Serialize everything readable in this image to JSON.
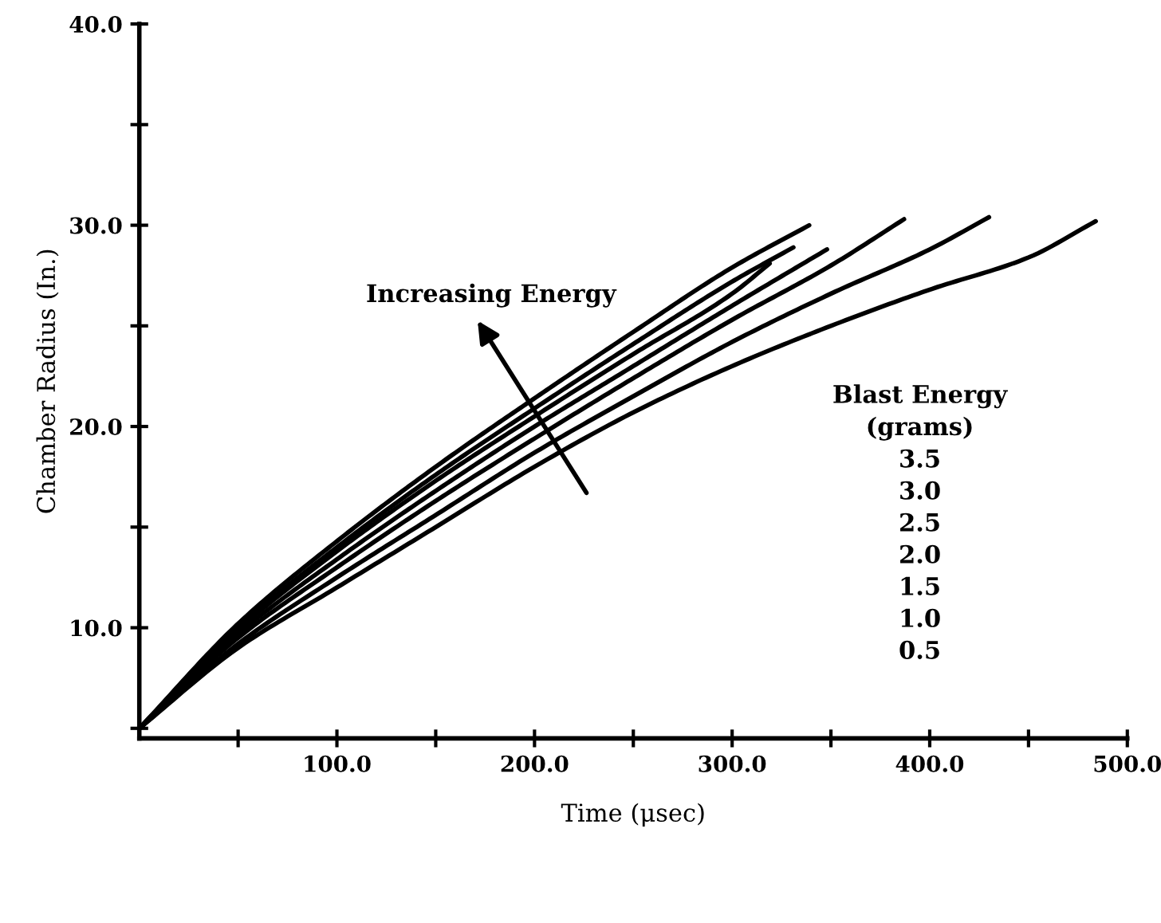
{
  "chart_data": {
    "type": "line",
    "xlabel": "Time (μsec)",
    "ylabel": "Chamber Radius (In.)",
    "grid": false,
    "marker": "none",
    "line_style": "solid",
    "xlim": [
      0,
      500
    ],
    "ylim": [
      4.5,
      40
    ],
    "xticks": [
      {
        "value": 50,
        "label": null
      },
      {
        "value": 100,
        "label": "100.0"
      },
      {
        "value": 150,
        "label": null
      },
      {
        "value": 200,
        "label": "200.0"
      },
      {
        "value": 250,
        "label": null
      },
      {
        "value": 300,
        "label": "300.0"
      },
      {
        "value": 350,
        "label": null
      },
      {
        "value": 400,
        "label": "400.0"
      },
      {
        "value": 450,
        "label": null
      },
      {
        "value": 500,
        "label": "500.0"
      }
    ],
    "yticks": [
      {
        "value": 5,
        "label": null
      },
      {
        "value": 10,
        "label": "10.0"
      },
      {
        "value": 15,
        "label": null
      },
      {
        "value": 20,
        "label": "20.0"
      },
      {
        "value": 25,
        "label": null
      },
      {
        "value": 30,
        "label": "30.0"
      },
      {
        "value": 35,
        "label": null
      },
      {
        "value": 40,
        "label": "40.0"
      }
    ],
    "annotations": [
      "Increasing Energy",
      "Blast Energy\n(grams)\n3.5\n3.0\n2.5\n2.0\n1.5\n1.0\n0.5"
    ],
    "series": [
      {
        "color": "#000000",
        "x": [
          0,
          50,
          100,
          150,
          200,
          250,
          300,
          339
        ],
        "values": [
          5,
          10.2,
          14.3,
          18.0,
          21.4,
          24.7,
          27.9,
          30.0
        ]
      },
      {
        "color": "#000000",
        "x": [
          0,
          50,
          100,
          150,
          200,
          250,
          300,
          331
        ],
        "values": [
          5,
          10.0,
          14.0,
          17.6,
          20.9,
          24.1,
          27.2,
          28.9
        ]
      },
      {
        "color": "#000000",
        "x": [
          0,
          50,
          100,
          150,
          200,
          250,
          300,
          319
        ],
        "values": [
          5,
          9.9,
          13.8,
          17.3,
          20.5,
          23.6,
          26.6,
          28.1
        ]
      },
      {
        "color": "#000000",
        "x": [
          0,
          50,
          100,
          150,
          200,
          250,
          300,
          348
        ],
        "values": [
          5,
          9.7,
          13.4,
          16.8,
          20.0,
          23.0,
          26.0,
          28.8
        ]
      },
      {
        "color": "#000000",
        "x": [
          0,
          50,
          100,
          150,
          200,
          250,
          300,
          350,
          387
        ],
        "values": [
          5,
          9.5,
          13.0,
          16.3,
          19.4,
          22.4,
          25.3,
          28.0,
          30.3
        ]
      },
      {
        "color": "#000000",
        "x": [
          0,
          50,
          100,
          150,
          200,
          250,
          300,
          350,
          400,
          430
        ],
        "values": [
          5,
          9.2,
          12.5,
          15.6,
          18.7,
          21.5,
          24.2,
          26.6,
          28.8,
          30.4
        ]
      },
      {
        "color": "#000000",
        "x": [
          0,
          50,
          100,
          150,
          200,
          250,
          300,
          350,
          400,
          450,
          484
        ],
        "values": [
          5,
          9.0,
          12.0,
          15.0,
          18.0,
          20.7,
          23.0,
          25.0,
          26.8,
          28.4,
          30.2
        ]
      }
    ]
  }
}
